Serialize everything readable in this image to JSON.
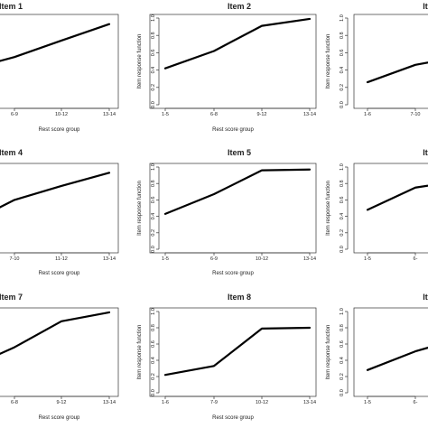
{
  "chart_data": [
    {
      "type": "line",
      "title": "Item 1",
      "xlabel": "Rest score group",
      "ylabel": "",
      "categories": [
        "",
        "6-9",
        "10-12",
        "13-14"
      ],
      "values": [
        0.5,
        0.55,
        0.74,
        0.93
      ],
      "ylim": [
        0,
        1
      ]
    },
    {
      "type": "line",
      "title": "Item 2",
      "xlabel": "Rest score group",
      "ylabel": "Item response function",
      "categories": [
        "1-5",
        "6-8",
        "9-12",
        "13-14"
      ],
      "values": [
        0.42,
        0.62,
        0.91,
        0.99
      ],
      "ylim": [
        0,
        1
      ],
      "yticks": [
        "0.0",
        "0.2",
        "0.4",
        "0.6",
        "0.8",
        "1.0"
      ]
    },
    {
      "type": "line",
      "title": "It",
      "xlabel": "",
      "ylabel": "Item response function",
      "categories": [
        "1-6",
        "7-10",
        ""
      ],
      "values": [
        0.26,
        0.46,
        0.56
      ],
      "ylim": [
        0,
        1
      ],
      "yticks": [
        "0.0",
        "0.2",
        "0.4",
        "0.6",
        "0.8",
        "1.0"
      ]
    },
    {
      "type": "line",
      "title": "Item 4",
      "xlabel": "Rest score group",
      "ylabel": "",
      "categories": [
        "",
        "7-10",
        "11-12",
        "13-14"
      ],
      "values": [
        0.5,
        0.6,
        0.77,
        0.93
      ],
      "ylim": [
        0,
        1
      ]
    },
    {
      "type": "line",
      "title": "Item 5",
      "xlabel": "Rest score group",
      "ylabel": "Item response function",
      "categories": [
        "1-5",
        "6-9",
        "10-12",
        "13-14"
      ],
      "values": [
        0.43,
        0.67,
        0.96,
        0.97
      ],
      "ylim": [
        0,
        1
      ],
      "yticks": [
        "0.0",
        "0.2",
        "0.4",
        "0.6",
        "0.8",
        "1.0"
      ]
    },
    {
      "type": "line",
      "title": "It",
      "xlabel": "",
      "ylabel": "Item response function",
      "categories": [
        "1-5",
        "6-",
        ""
      ],
      "values": [
        0.48,
        0.75,
        0.84
      ],
      "ylim": [
        0,
        1
      ],
      "yticks": [
        "0.0",
        "0.2",
        "0.4",
        "0.6",
        "0.8",
        "1.0"
      ]
    },
    {
      "type": "line",
      "title": "Item 7",
      "xlabel": "Rest score group",
      "ylabel": "",
      "categories": [
        "",
        "6-8",
        "9-12",
        "13-14"
      ],
      "values": [
        0.47,
        0.56,
        0.88,
        0.99
      ],
      "ylim": [
        0,
        1
      ]
    },
    {
      "type": "line",
      "title": "Item 8",
      "xlabel": "Rest score group",
      "ylabel": "Item response function",
      "categories": [
        "1-6",
        "7-9",
        "10-12",
        "13-14"
      ],
      "values": [
        0.22,
        0.33,
        0.79,
        0.8
      ],
      "ylim": [
        0,
        1
      ],
      "yticks": [
        "0.0",
        "0.2",
        "0.4",
        "0.6",
        "0.8",
        "1.0"
      ]
    },
    {
      "type": "line",
      "title": "It",
      "xlabel": "",
      "ylabel": "Item response function",
      "categories": [
        "1-5",
        "6-",
        ""
      ],
      "values": [
        0.28,
        0.51,
        0.68
      ],
      "ylim": [
        0,
        1
      ],
      "yticks": [
        "0.0",
        "0.2",
        "0.4",
        "0.6",
        "0.8",
        "1.0"
      ]
    }
  ]
}
